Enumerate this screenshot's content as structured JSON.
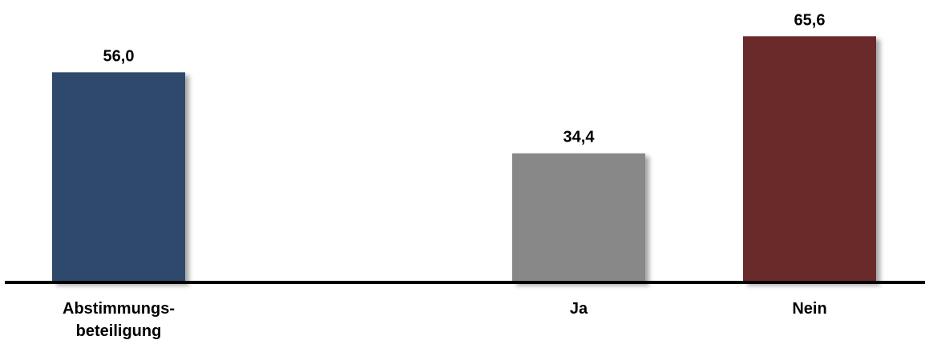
{
  "chart_data": {
    "type": "bar",
    "categories": [
      [
        "Abstimmungs-",
        "beteiligung"
      ],
      [
        "Ja"
      ],
      [
        "Nein"
      ]
    ],
    "values": [
      56.0,
      34.4,
      65.6
    ],
    "value_labels": [
      "56,0",
      "34,4",
      "65,6"
    ],
    "colors": [
      "#2e4a6c",
      "#888888",
      "#6b2b2c"
    ],
    "ylim": [
      0,
      70
    ],
    "grid": false,
    "legend": "none"
  }
}
